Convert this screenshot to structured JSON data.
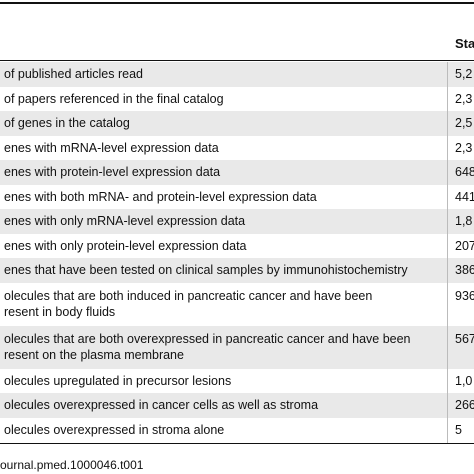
{
  "table": {
    "header": {
      "value_col": "Sta"
    },
    "rows": [
      {
        "label": [
          "of published articles read"
        ],
        "value": "5,2"
      },
      {
        "label": [
          "of papers referenced in the final catalog"
        ],
        "value": "2,3"
      },
      {
        "label": [
          "of genes in the catalog"
        ],
        "value": "2,5"
      },
      {
        "label": [
          "enes with mRNA-level expression data"
        ],
        "value": "2,3"
      },
      {
        "label": [
          "enes with protein-level expression data"
        ],
        "value": "648"
      },
      {
        "label": [
          "enes with both mRNA- and protein-level expression data"
        ],
        "value": "441"
      },
      {
        "label": [
          "enes with only mRNA-level expression data"
        ],
        "value": "1,8"
      },
      {
        "label": [
          "enes with only protein-level expression data"
        ],
        "value": "207"
      },
      {
        "label": [
          "enes that have been tested on clinical samples by immunohistochemistry"
        ],
        "value": "386"
      },
      {
        "label": [
          "olecules that are both induced in pancreatic cancer and have been",
          "resent in body fluids"
        ],
        "value": "936"
      },
      {
        "label": [
          "olecules that are both overexpressed in pancreatic cancer and have been",
          "resent on the plasma membrane"
        ],
        "value": "567"
      },
      {
        "label": [
          "olecules upregulated in precursor lesions"
        ],
        "value": "1,0"
      },
      {
        "label": [
          "olecules overexpressed in cancer cells as well as stroma"
        ],
        "value": "266"
      },
      {
        "label": [
          "olecules overexpressed in stroma alone"
        ],
        "value": "5"
      }
    ],
    "footer": "ournal.pmed.1000046.t001"
  }
}
